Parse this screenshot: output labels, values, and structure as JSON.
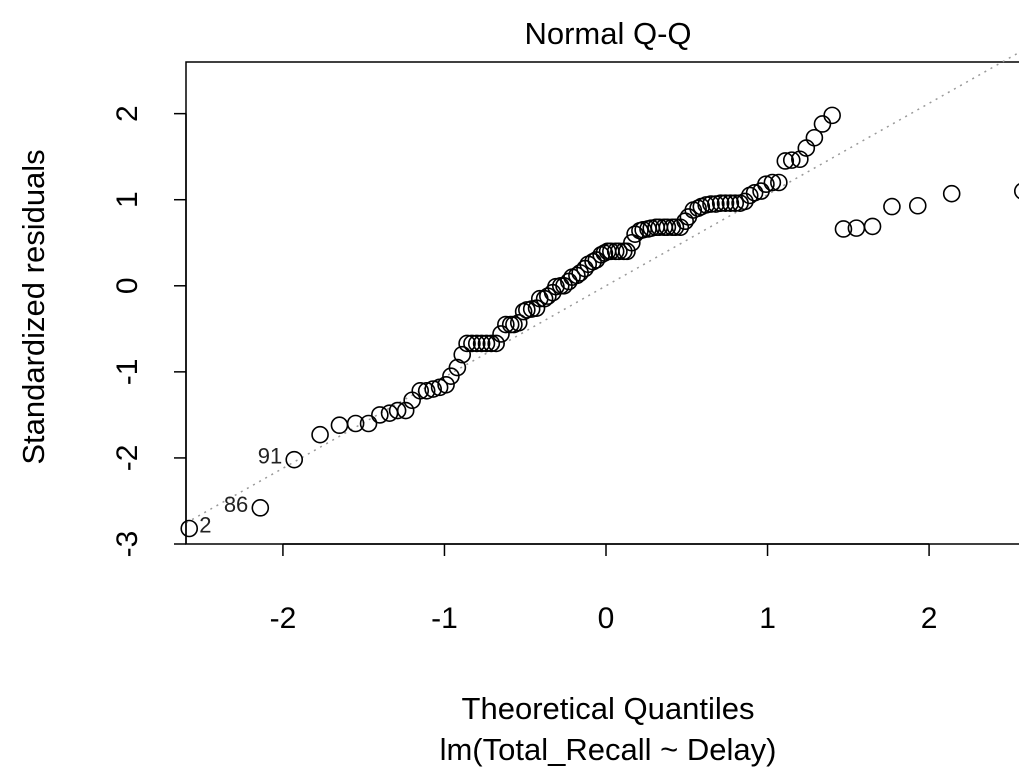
{
  "chart_data": {
    "type": "scatter",
    "title": "Normal Q-Q",
    "xlabel": "Theoretical Quantiles",
    "subtitle": "lm(Total_Recall ~ Delay)",
    "ylabel": "Standardized residuals",
    "xlim": [
      -2.6,
      2.6
    ],
    "ylim": [
      -3.0,
      2.6
    ],
    "x_ticks": [
      -2,
      -1,
      0,
      1,
      2
    ],
    "x_tick_labels": [
      "-2",
      "-1",
      "0",
      "1",
      "2"
    ],
    "y_ticks": [
      -3,
      -2,
      -1,
      0,
      1,
      2
    ],
    "y_tick_labels": [
      "-3",
      "-2",
      "-1",
      "0",
      "1",
      "2"
    ],
    "grid": false,
    "reference_line": {
      "style": "dotted",
      "color": "#999999",
      "slope": 1.06,
      "intercept": 0.0
    },
    "point_labels": [
      {
        "x": -2.58,
        "y": -2.82,
        "text": "2"
      },
      {
        "x": -2.14,
        "y": -2.58,
        "text": "86"
      },
      {
        "x": -1.93,
        "y": -2.02,
        "text": "91"
      }
    ],
    "x": [
      -2.58,
      -2.14,
      -1.93,
      -1.77,
      -1.65,
      -1.55,
      -1.47,
      -1.4,
      -1.34,
      -1.29,
      -1.24,
      -1.2,
      -1.15,
      -1.11,
      -1.07,
      -1.03,
      -0.99,
      -0.96,
      -0.92,
      -0.89,
      -0.86,
      -0.83,
      -0.8,
      -0.77,
      -0.74,
      -0.71,
      -0.68,
      -0.65,
      -0.62,
      -0.59,
      -0.57,
      -0.54,
      -0.51,
      -0.49,
      -0.46,
      -0.43,
      -0.41,
      -0.38,
      -0.36,
      -0.33,
      -0.31,
      -0.28,
      -0.26,
      -0.23,
      -0.21,
      -0.18,
      -0.16,
      -0.13,
      -0.11,
      -0.08,
      -0.06,
      -0.03,
      -0.01,
      0.01,
      0.03,
      0.06,
      0.08,
      0.11,
      0.13,
      0.16,
      0.18,
      0.21,
      0.23,
      0.26,
      0.28,
      0.31,
      0.33,
      0.36,
      0.38,
      0.41,
      0.43,
      0.46,
      0.49,
      0.51,
      0.54,
      0.57,
      0.59,
      0.62,
      0.65,
      0.68,
      0.71,
      0.74,
      0.77,
      0.8,
      0.83,
      0.86,
      0.89,
      0.92,
      0.96,
      0.99,
      1.03,
      1.07,
      1.11,
      1.15,
      1.2,
      1.24,
      1.29,
      1.34,
      1.4,
      1.47,
      1.55,
      1.65,
      1.77,
      1.93,
      2.14,
      2.58
    ],
    "y": [
      -2.82,
      -2.58,
      -2.02,
      -1.73,
      -1.62,
      -1.6,
      -1.6,
      -1.5,
      -1.48,
      -1.45,
      -1.45,
      -1.33,
      -1.22,
      -1.22,
      -1.2,
      -1.18,
      -1.15,
      -1.05,
      -0.95,
      -0.8,
      -0.67,
      -0.67,
      -0.67,
      -0.67,
      -0.67,
      -0.67,
      -0.67,
      -0.56,
      -0.45,
      -0.45,
      -0.45,
      -0.43,
      -0.3,
      -0.28,
      -0.27,
      -0.26,
      -0.15,
      -0.15,
      -0.12,
      -0.08,
      -0.01,
      0.0,
      0.0,
      0.05,
      0.1,
      0.12,
      0.15,
      0.2,
      0.25,
      0.28,
      0.3,
      0.36,
      0.38,
      0.4,
      0.4,
      0.4,
      0.4,
      0.4,
      0.4,
      0.5,
      0.6,
      0.64,
      0.65,
      0.66,
      0.67,
      0.68,
      0.68,
      0.68,
      0.68,
      0.68,
      0.68,
      0.68,
      0.75,
      0.8,
      0.88,
      0.9,
      0.92,
      0.94,
      0.95,
      0.95,
      0.96,
      0.96,
      0.96,
      0.96,
      0.96,
      0.98,
      1.05,
      1.08,
      1.1,
      1.18,
      1.2,
      1.2,
      1.45,
      1.46,
      1.47,
      1.6,
      1.72,
      1.88,
      1.98,
      0.66,
      0.67,
      0.69,
      0.92,
      0.93,
      1.07,
      1.1
    ]
  }
}
